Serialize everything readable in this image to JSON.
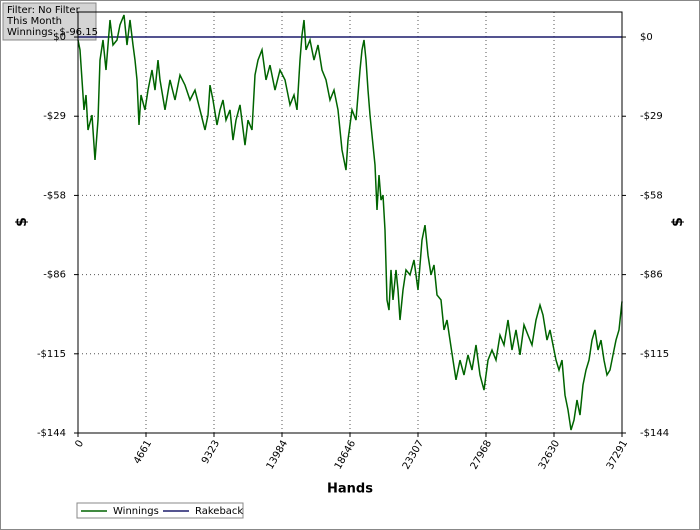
{
  "chart_data": {
    "type": "line",
    "annotations": [
      "Filter: No Filter",
      "This Month",
      "Winnings: $-96.15"
    ],
    "xlabel": "Hands",
    "ylabel": "$",
    "y2label": "$",
    "xlim": [
      0,
      37291
    ],
    "xticks": [
      0,
      4661,
      9323,
      13984,
      18646,
      23307,
      27968,
      32630,
      37291
    ],
    "ylim": [
      -144,
      9.1
    ],
    "yticks": [
      {
        "value": 0,
        "label": "$0"
      },
      {
        "value": -28.8,
        "label": "-$29"
      },
      {
        "value": -57.6,
        "label": "-$58"
      },
      {
        "value": -86.4,
        "label": "-$86"
      },
      {
        "value": -115.2,
        "label": "-$115"
      },
      {
        "value": -144,
        "label": "-$144"
      }
    ],
    "grid": true,
    "legend": "bottom",
    "series": [
      {
        "name": "Winnings",
        "color": "#006400",
        "x": [
          0,
          137,
          274,
          411,
          548,
          686,
          960,
          1165,
          1371,
          1508,
          1714,
          1919,
          2194,
          2399,
          2673,
          2879,
          3153,
          3359,
          3564,
          3770,
          3907,
          4044,
          4181,
          4318,
          4593,
          4798,
          5072,
          5278,
          5484,
          5621,
          5963,
          6306,
          6649,
          6992,
          7335,
          7677,
          8020,
          8363,
          8706,
          8911,
          9048,
          9254,
          9528,
          9733,
          9939,
          10145,
          10419,
          10625,
          10830,
          11105,
          11447,
          11653,
          11927,
          12133,
          12339,
          12613,
          12887,
          13161,
          13504,
          13847,
          14190,
          14532,
          14807,
          15012,
          15218,
          15355,
          15492,
          15629,
          15903,
          16177,
          16451,
          16725,
          16999,
          17273,
          17547,
          17822,
          18096,
          18370,
          18507,
          18781,
          19055,
          19329,
          19466,
          19603,
          19740,
          19878,
          20015,
          20220,
          20357,
          20495,
          20632,
          20768,
          20906,
          21043,
          21181,
          21318,
          21455,
          21593,
          21798,
          21935,
          22073,
          22278,
          22484,
          22759,
          23033,
          23307,
          23581,
          23787,
          23993,
          24198,
          24404,
          24610,
          24884,
          25090,
          25295,
          25501,
          25706,
          25912,
          26186,
          26460,
          26735,
          27009,
          27283,
          27557,
          27831,
          28106,
          28380,
          28654,
          28929,
          29203,
          29477,
          29751,
          30025,
          30299,
          30574,
          30848,
          31122,
          31396,
          31670,
          31876,
          32150,
          32356,
          32561,
          32767,
          32973,
          33178,
          33384,
          33590,
          33796,
          34001,
          34207,
          34412,
          34618,
          34824,
          35029,
          35235,
          35441,
          35646,
          35852,
          36057,
          36263,
          36469,
          36674,
          36880,
          37086,
          37291
        ],
        "values": [
          -1.1,
          -4.7,
          -15.6,
          -26.5,
          -21.1,
          -33.8,
          -28.4,
          -44.7,
          -30.2,
          -8.4,
          -1.1,
          -12.0,
          6.2,
          -2.9,
          -1.1,
          4.4,
          8.0,
          -2.9,
          6.2,
          -2.9,
          -8.4,
          -15.6,
          -32.0,
          -21.1,
          -26.5,
          -19.3,
          -12.0,
          -19.3,
          -8.4,
          -15.6,
          -26.5,
          -15.6,
          -22.9,
          -13.8,
          -17.5,
          -22.9,
          -19.3,
          -26.5,
          -33.8,
          -28.4,
          -17.5,
          -22.9,
          -32.0,
          -26.5,
          -22.9,
          -30.2,
          -26.5,
          -37.5,
          -30.2,
          -24.7,
          -39.3,
          -30.2,
          -33.8,
          -13.8,
          -8.4,
          -4.7,
          -15.6,
          -10.2,
          -19.3,
          -12.0,
          -15.6,
          -24.7,
          -21.1,
          -26.5,
          -8.4,
          0.7,
          6.2,
          -4.7,
          -1.1,
          -8.4,
          -2.9,
          -12.0,
          -15.6,
          -22.9,
          -19.3,
          -26.5,
          -41.1,
          -48.4,
          -37.5,
          -26.5,
          -30.2,
          -12.0,
          -4.7,
          -1.1,
          -8.4,
          -19.3,
          -28.4,
          -39.3,
          -46.5,
          -62.9,
          -50.2,
          -59.3,
          -57.5,
          -70.2,
          -95.6,
          -99.3,
          -84.7,
          -95.6,
          -84.7,
          -92.0,
          -102.9,
          -92.0,
          -84.7,
          -86.5,
          -81.1,
          -92.0,
          -73.8,
          -68.4,
          -79.3,
          -86.5,
          -82.9,
          -93.8,
          -95.6,
          -106.5,
          -102.9,
          -110.2,
          -117.5,
          -124.7,
          -117.5,
          -122.9,
          -115.6,
          -121.1,
          -112.0,
          -122.9,
          -128.4,
          -117.5,
          -113.8,
          -117.5,
          -108.4,
          -112.0,
          -102.9,
          -113.8,
          -106.5,
          -115.6,
          -104.7,
          -108.4,
          -112.0,
          -102.9,
          -97.5,
          -101.1,
          -110.2,
          -106.5,
          -112.0,
          -117.5,
          -121.1,
          -117.5,
          -130.2,
          -135.6,
          -142.9,
          -139.3,
          -132.0,
          -137.5,
          -126.5,
          -121.1,
          -117.5,
          -110.2,
          -106.5,
          -113.8,
          -110.2,
          -117.5,
          -122.9,
          -121.1,
          -115.6,
          -110.2,
          -106.5,
          -96.15
        ]
      },
      {
        "name": "Rakeback",
        "color": "#1c1c6b",
        "x": [
          0,
          37291
        ],
        "values": [
          0,
          0
        ]
      }
    ]
  }
}
